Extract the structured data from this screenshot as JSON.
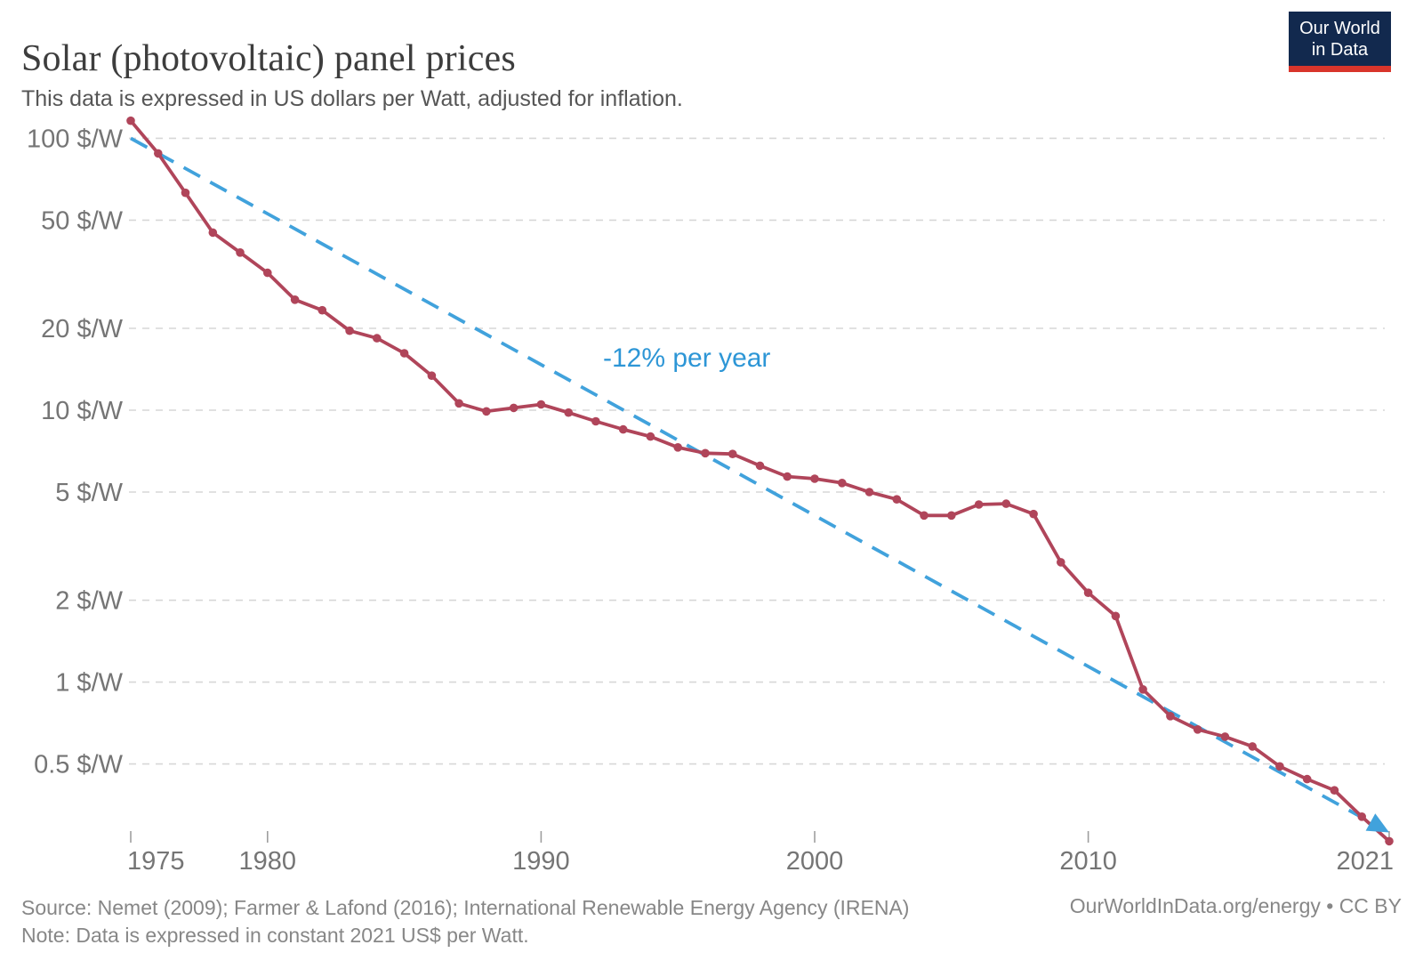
{
  "header": {
    "title": "Solar (photovoltaic) panel prices",
    "subtitle": "This data is expressed in US dollars per Watt, adjusted for inflation."
  },
  "logo": {
    "line1": "Our World",
    "line2": "in Data"
  },
  "footer": {
    "source": "Source: Nemet (2009); Farmer & Lafond (2016); International Renewable Energy Agency (IRENA)",
    "note": "Note: Data is expressed in constant 2021 US$ per Watt.",
    "link": "OurWorldInData.org/energy • CC BY"
  },
  "colors": {
    "series": "#b0455a",
    "trend": "#41a2dc",
    "trend_label": "#2d96d6",
    "grid": "#d7d7d7",
    "axis_text": "#757575",
    "tick_mark": "#9e9e9e",
    "title_text": "#3d3d3d",
    "logo_bg": "#12294e",
    "logo_bar": "#d8352b"
  },
  "chart_data": {
    "type": "line",
    "title": "Solar (photovoltaic) panel prices",
    "xlabel": "",
    "ylabel": "",
    "y_scale": "log",
    "grid": true,
    "legend": "none",
    "xlim": [
      1975,
      2021
    ],
    "ylim": [
      0.26,
      116
    ],
    "x_ticks": [
      {
        "year": 1975,
        "label": "1975"
      },
      {
        "year": 1980,
        "label": "1980"
      },
      {
        "year": 1990,
        "label": "1990"
      },
      {
        "year": 2000,
        "label": "2000"
      },
      {
        "year": 2010,
        "label": "2010"
      },
      {
        "year": 2021,
        "label": "2021"
      }
    ],
    "y_ticks": [
      {
        "value": 100,
        "label": "100 $/W"
      },
      {
        "value": 50,
        "label": "50 $/W"
      },
      {
        "value": 20,
        "label": "20 $/W"
      },
      {
        "value": 10,
        "label": "10 $/W"
      },
      {
        "value": 5,
        "label": "5 $/W"
      },
      {
        "value": 2,
        "label": "2 $/W"
      },
      {
        "value": 1,
        "label": "1 $/W"
      },
      {
        "value": 0.5,
        "label": "0.5 $/W"
      }
    ],
    "series": [
      {
        "name": "Solar photovoltaic panel price (US$/W)",
        "role": "data",
        "x": [
          1975,
          1976,
          1977,
          1978,
          1979,
          1980,
          1981,
          1982,
          1983,
          1984,
          1985,
          1986,
          1987,
          1988,
          1989,
          1990,
          1991,
          1992,
          1993,
          1994,
          1995,
          1996,
          1997,
          1998,
          1999,
          2000,
          2001,
          2002,
          2003,
          2004,
          2005,
          2006,
          2007,
          2008,
          2009,
          2010,
          2011,
          2012,
          2013,
          2014,
          2015,
          2016,
          2017,
          2018,
          2019,
          2020,
          2021
        ],
        "values": [
          116,
          88,
          63,
          45,
          38,
          32,
          25.5,
          23.3,
          19.6,
          18.4,
          16.2,
          13.4,
          10.6,
          9.9,
          10.2,
          10.5,
          9.8,
          9.1,
          8.5,
          8.0,
          7.3,
          6.95,
          6.9,
          6.25,
          5.7,
          5.6,
          5.4,
          5.0,
          4.7,
          4.1,
          4.1,
          4.5,
          4.53,
          4.15,
          2.76,
          2.13,
          1.75,
          0.94,
          0.75,
          0.67,
          0.63,
          0.58,
          0.49,
          0.44,
          0.4,
          0.32,
          0.26
        ]
      },
      {
        "name": "-12% per year",
        "role": "trend",
        "style": "dashed",
        "x": [
          1975,
          2021
        ],
        "values": [
          100,
          0.28
        ]
      }
    ],
    "annotation": {
      "text": "-12% per year"
    }
  }
}
